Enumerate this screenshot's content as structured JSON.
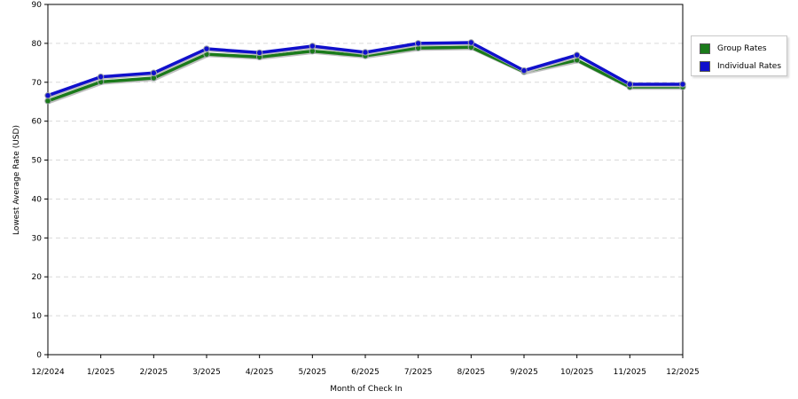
{
  "chart_data": {
    "type": "line",
    "title": "",
    "xlabel": "Month of Check In",
    "ylabel": "Lowest Average Rate (USD)",
    "categories": [
      "12/2024",
      "1/2025",
      "2/2025",
      "3/2025",
      "4/2025",
      "5/2025",
      "6/2025",
      "7/2025",
      "8/2025",
      "9/2025",
      "10/2025",
      "11/2025",
      "12/2025"
    ],
    "ylim": [
      0,
      90
    ],
    "yticks": [
      0,
      10,
      20,
      30,
      40,
      50,
      60,
      70,
      80,
      90
    ],
    "grid": true,
    "legend_position": "right",
    "series": [
      {
        "name": "Group Rates",
        "color": "#1a7a1a",
        "values": [
          65.2,
          70.1,
          71.1,
          77.2,
          76.5,
          78.0,
          76.8,
          78.8,
          79.0,
          72.7,
          75.7,
          68.8,
          68.8
        ]
      },
      {
        "name": "Individual Rates",
        "color": "#1010cc",
        "values": [
          66.6,
          71.4,
          72.4,
          78.6,
          77.6,
          79.3,
          77.7,
          80.0,
          80.2,
          73.0,
          77.0,
          69.5,
          69.5
        ]
      }
    ]
  }
}
